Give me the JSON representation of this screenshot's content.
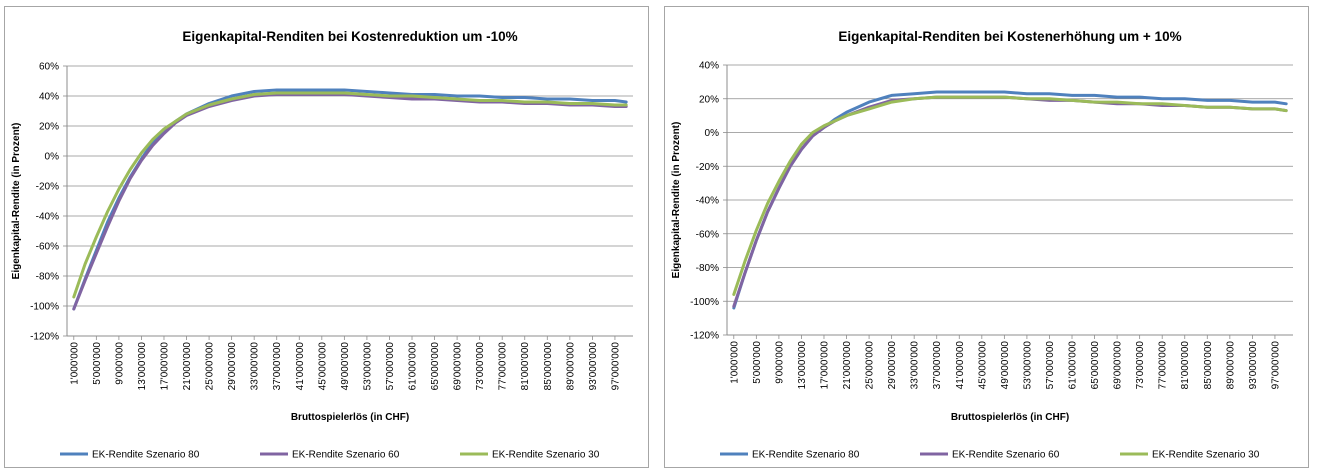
{
  "chart_data": [
    {
      "type": "line",
      "title": "Eigenkapital-Renditen bei Kostenreduktion um -10%",
      "xlabel": "Bruttospielerlös (in CHF)",
      "ylabel": "Eigenkapital-Rendite  (in Prozent)",
      "ylim": [
        -120,
        60
      ],
      "y_ticks": [
        "60%",
        "40%",
        "20%",
        "0%",
        "-20%",
        "-40%",
        "-60%",
        "-80%",
        "-100%",
        "-120%"
      ],
      "x_tick_labels": [
        "1'000'000",
        "5'000'000",
        "9'000'000",
        "13'000'000",
        "17'000'000",
        "21'000'000",
        "25'000'000",
        "29'000'000",
        "33'000'000",
        "37'000'000",
        "41'000'000",
        "45'000'000",
        "49'000'000",
        "53'000'000",
        "57'000'000",
        "61'000'000",
        "65'000'000",
        "69'000'000",
        "73'000'000",
        "77'000'000",
        "81'000'000",
        "85'000'000",
        "89'000'000",
        "93'000'000",
        "97'000'000"
      ],
      "x": [
        1000000,
        3000000,
        5000000,
        7000000,
        9000000,
        11000000,
        13000000,
        15000000,
        17000000,
        19000000,
        21000000,
        25000000,
        29000000,
        33000000,
        37000000,
        41000000,
        45000000,
        49000000,
        53000000,
        57000000,
        61000000,
        65000000,
        69000000,
        73000000,
        77000000,
        81000000,
        85000000,
        89000000,
        93000000,
        97000000,
        99000000
      ],
      "grid": true,
      "legend_position": "bottom",
      "series": [
        {
          "name": "EK-Rendite Szenario 80",
          "color": "#4f81bd",
          "values": [
            -102,
            -82,
            -63,
            -44,
            -28,
            -14,
            -2,
            9,
            17,
            23,
            28,
            35,
            40,
            43,
            44,
            44,
            44,
            44,
            43,
            42,
            41,
            41,
            40,
            40,
            39,
            39,
            38,
            38,
            37,
            37,
            36
          ]
        },
        {
          "name": "EK-Rendite Szenario 60",
          "color": "#8064a2",
          "values": [
            -102,
            -83,
            -65,
            -47,
            -30,
            -15,
            -3,
            7,
            15,
            22,
            27,
            33,
            37,
            40,
            41,
            41,
            41,
            41,
            40,
            39,
            38,
            38,
            37,
            36,
            36,
            35,
            35,
            34,
            34,
            33,
            33
          ]
        },
        {
          "name": "EK-Rendite Szenario 30",
          "color": "#9bbb59",
          "values": [
            -94,
            -72,
            -54,
            -37,
            -22,
            -9,
            2,
            11,
            18,
            23,
            28,
            34,
            38,
            41,
            42,
            42,
            42,
            42,
            41,
            40,
            40,
            39,
            38,
            37,
            37,
            36,
            36,
            35,
            35,
            34,
            34
          ]
        }
      ]
    },
    {
      "type": "line",
      "title": "Eigenkapital-Renditen bei Kostenerhöhung um + 10%",
      "xlabel": "Bruttospielerlös (in CHF)",
      "ylabel": "Eigenkapital-Rendite  (in Prozent)",
      "ylim": [
        -120,
        40
      ],
      "y_ticks": [
        "40%",
        "20%",
        "0%",
        "-20%",
        "-40%",
        "-60%",
        "-80%",
        "-100%",
        "-120%"
      ],
      "x_tick_labels": [
        "1'000'000",
        "5'000'000",
        "9'000'000",
        "13'000'000",
        "17'000'000",
        "21'000'000",
        "25'000'000",
        "29'000'000",
        "33'000'000",
        "37'000'000",
        "41'000'000",
        "45'000'000",
        "49'000'000",
        "53'000'000",
        "57'000'000",
        "61'000'000",
        "65'000'000",
        "69'000'000",
        "73'000'000",
        "77'000'000",
        "81'000'000",
        "85'000'000",
        "89'000'000",
        "93'000'000",
        "97'000'000"
      ],
      "x": [
        1000000,
        3000000,
        5000000,
        7000000,
        9000000,
        11000000,
        13000000,
        15000000,
        17000000,
        19000000,
        21000000,
        25000000,
        29000000,
        33000000,
        37000000,
        41000000,
        45000000,
        49000000,
        53000000,
        57000000,
        61000000,
        65000000,
        69000000,
        73000000,
        77000000,
        81000000,
        85000000,
        89000000,
        93000000,
        97000000,
        99000000
      ],
      "grid": true,
      "legend_position": "bottom",
      "series": [
        {
          "name": "EK-Rendite Szenario 80",
          "color": "#4f81bd",
          "values": [
            -104,
            -83,
            -64,
            -47,
            -33,
            -20,
            -10,
            -2,
            3,
            8,
            12,
            18,
            22,
            23,
            24,
            24,
            24,
            24,
            23,
            23,
            22,
            22,
            21,
            21,
            20,
            20,
            19,
            19,
            18,
            18,
            17
          ]
        },
        {
          "name": "EK-Rendite Szenario 60",
          "color": "#8064a2",
          "values": [
            -103,
            -83,
            -64,
            -47,
            -33,
            -20,
            -10,
            -2,
            3,
            7,
            10,
            15,
            19,
            20,
            21,
            21,
            21,
            21,
            20,
            19,
            19,
            18,
            17,
            17,
            16,
            16,
            15,
            15,
            14,
            14,
            13
          ]
        },
        {
          "name": "EK-Rendite Szenario 30",
          "color": "#9bbb59",
          "values": [
            -96,
            -76,
            -58,
            -42,
            -29,
            -17,
            -7,
            0,
            4,
            7,
            10,
            14,
            18,
            20,
            21,
            21,
            21,
            21,
            20,
            20,
            19,
            18,
            18,
            17,
            17,
            16,
            15,
            15,
            14,
            14,
            13
          ]
        }
      ]
    }
  ]
}
